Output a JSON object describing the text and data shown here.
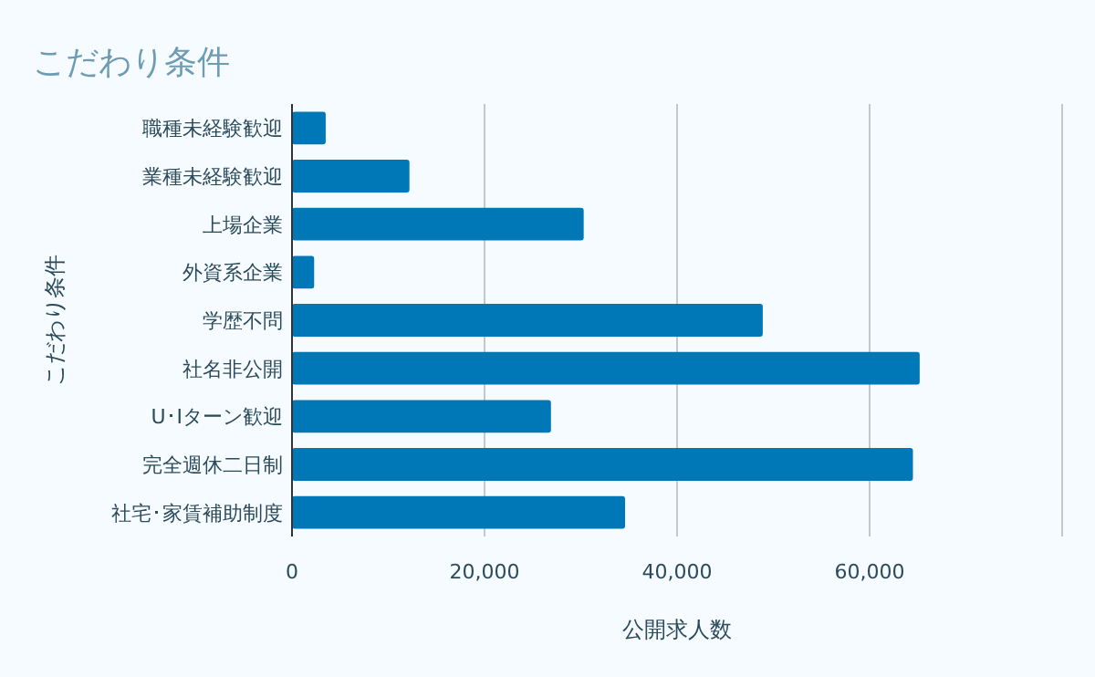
{
  "chart_data": {
    "type": "bar",
    "orientation": "horizontal",
    "title": "こだわり条件",
    "xlabel": "公開求人数",
    "ylabel": "こだわり条件",
    "categories": [
      "職種未経験歓迎",
      "業種未経験歓迎",
      "上場企業",
      "外資系企業",
      "学歴不問",
      "社名非公開",
      "U･Iターン歓迎",
      "完全週休二日制",
      "社宅･家賃補助制度"
    ],
    "values": [
      3500,
      12200,
      30300,
      2300,
      48900,
      65200,
      26900,
      64500,
      34600
    ],
    "color": "#0077b6",
    "xlim": [
      0,
      80000
    ],
    "xticks": [
      {
        "value": 0,
        "label": "0"
      },
      {
        "value": 20000,
        "label": "20,000"
      },
      {
        "value": 40000,
        "label": "40,000"
      },
      {
        "value": 60000,
        "label": "60,000"
      },
      {
        "value": 80000,
        "label": null
      }
    ],
    "grid": "x"
  }
}
